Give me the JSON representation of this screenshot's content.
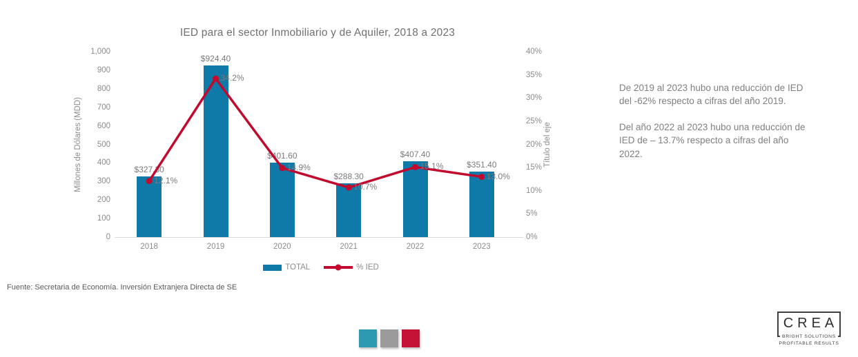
{
  "chart_data": {
    "type": "combo-bar-line",
    "title": "IED para el sector Inmobiliario y de Aquiler, 2018 a 2023",
    "categories": [
      "2018",
      "2019",
      "2020",
      "2021",
      "2022",
      "2023"
    ],
    "series": [
      {
        "name": "TOTAL",
        "type": "bar",
        "axis": "left",
        "color": "#0F79A8",
        "values": [
          327.3,
          924.4,
          401.6,
          288.3,
          407.4,
          351.4
        ],
        "labels": [
          "$327.30",
          "$924.40",
          "$401.60",
          "$288.30",
          "$407.40",
          "$351.40"
        ]
      },
      {
        "name": "% IED",
        "type": "line",
        "axis": "right",
        "color": "#C2092E",
        "values": [
          12.1,
          34.2,
          14.9,
          10.7,
          15.1,
          13.0
        ],
        "labels": [
          "12.1%",
          "34.2%",
          "14.9%",
          "10.7%",
          "15.1%",
          "13.0%"
        ]
      }
    ],
    "left_axis": {
      "title": "Millones de Dólares (MDD)",
      "min": 0,
      "max": 1000,
      "step": 100,
      "tick_labels": [
        "0",
        "100",
        "200",
        "300",
        "400",
        "500",
        "600",
        "700",
        "800",
        "900",
        "1,000"
      ]
    },
    "right_axis": {
      "title": "Título del eje",
      "min": 0,
      "max": 40,
      "step": 5,
      "tick_labels": [
        "0%",
        "5%",
        "10%",
        "15%",
        "20%",
        "25%",
        "30%",
        "35%",
        "40%"
      ]
    },
    "grid": false,
    "legend_position": "bottom"
  },
  "source_note": "Fuente: Secretaria de Economía. Inversión Extranjera Directa de SE",
  "commentary": {
    "p1": "De 2019 al 2023 hubo una reducción de IED del -62% respecto a cifras del año 2019.",
    "p2": "Del año 2022 al 2023 hubo una reducción de IED de – 13.7% respecto a cifras del año 2022."
  },
  "palette_swatches": [
    {
      "name": "teal",
      "color": "#2E9AB2"
    },
    {
      "name": "gray",
      "color": "#9B9B9B"
    },
    {
      "name": "red",
      "color": "#C41334"
    }
  ],
  "logo": {
    "name": "CREA",
    "line1": "BRIGHT SOLUTIONS",
    "line2": "PROFITABLE RESULTS"
  }
}
